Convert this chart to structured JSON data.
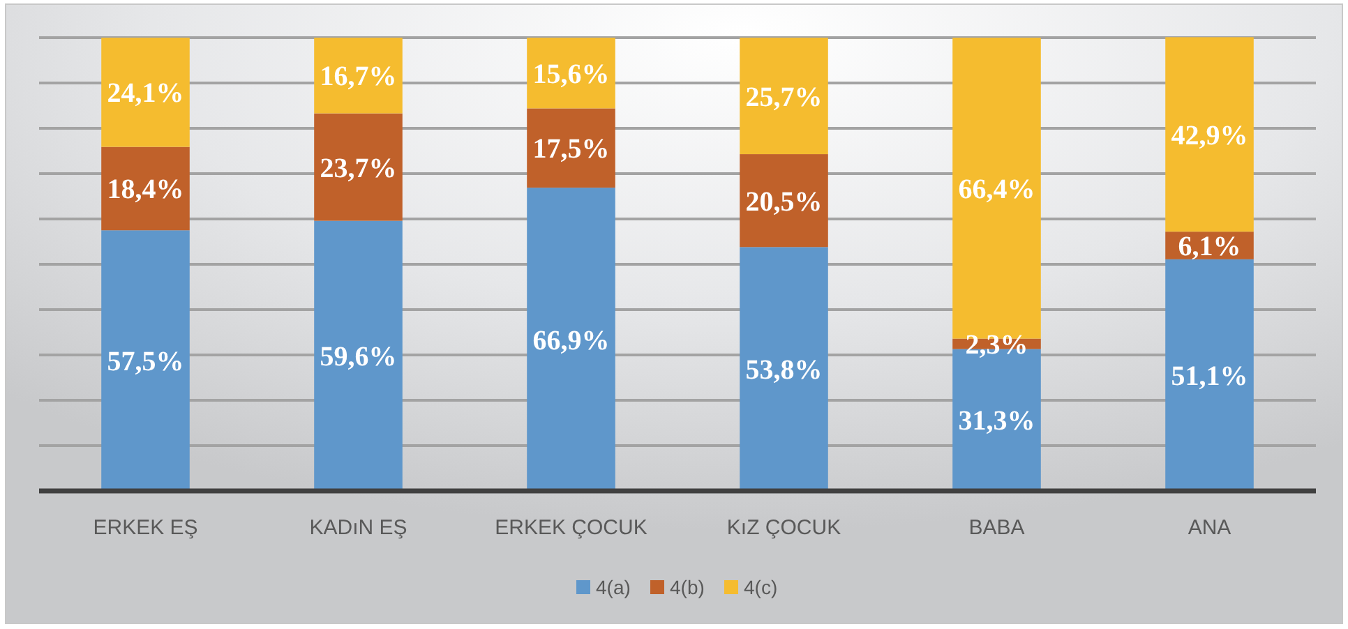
{
  "chart_data": {
    "type": "bar",
    "stacked": true,
    "categories": [
      "ERKEK EŞ",
      "KADıN EŞ",
      "ERKEK ÇOCUK",
      "KıZ ÇOCUK",
      "BABA",
      "ANA"
    ],
    "series": [
      {
        "name": "4(a)",
        "color": "#5f97cb",
        "values": [
          57.5,
          59.6,
          66.9,
          53.8,
          31.3,
          51.1
        ],
        "value_labels": [
          "57,5%",
          "59,6%",
          "66,9%",
          "53,8%",
          "31,3%",
          "51,1%"
        ]
      },
      {
        "name": "4(b)",
        "color": "#c0612a",
        "values": [
          18.4,
          23.7,
          17.5,
          20.5,
          2.3,
          6.1
        ],
        "value_labels": [
          "18,4%",
          "23,7%",
          "17,5%",
          "20,5%",
          "2,3%",
          "6,1%"
        ]
      },
      {
        "name": "4(c)",
        "color": "#f5bc2f",
        "values": [
          24.1,
          16.7,
          15.6,
          25.7,
          66.4,
          42.9
        ],
        "value_labels": [
          "24,1%",
          "16,7%",
          "15,6%",
          "25,7%",
          "66,4%",
          "42,9%"
        ]
      }
    ],
    "ylim": [
      0,
      100
    ],
    "yticks": [
      {
        "value": 0,
        "label": null
      },
      {
        "value": 10,
        "label": null
      },
      {
        "value": 20,
        "label": null
      },
      {
        "value": 30,
        "label": null
      },
      {
        "value": 40,
        "label": null
      },
      {
        "value": 50,
        "label": null
      },
      {
        "value": 60,
        "label": null
      },
      {
        "value": 70,
        "label": null
      },
      {
        "value": 80,
        "label": null
      },
      {
        "value": 90,
        "label": null
      },
      {
        "value": 100,
        "label": null
      }
    ],
    "tick_labels": "x",
    "grid": "y",
    "legend": "bottom"
  }
}
